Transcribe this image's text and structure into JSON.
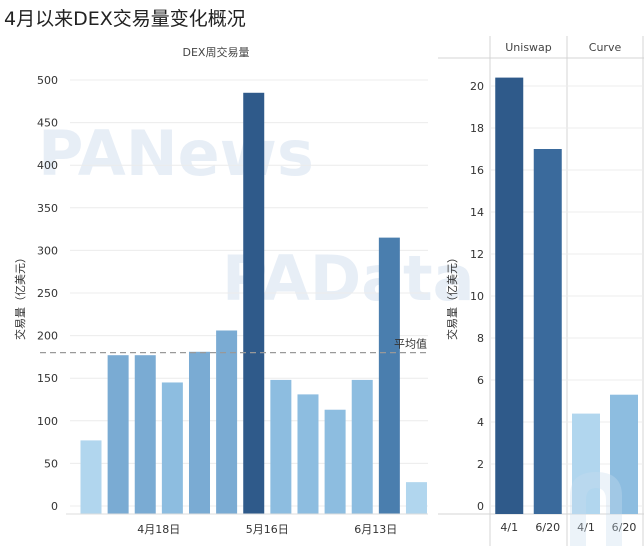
{
  "page": {
    "title": "4月以来DEX交易量变化概况"
  },
  "watermarks": [
    "PANews",
    "PAData"
  ],
  "colors": {
    "dark": "#2f5a8a",
    "dark2": "#3a6a9c",
    "mid_dark": "#4a7eae",
    "mid": "#7aabd3",
    "mid_light": "#8dbde0",
    "light": "#b1d6ee",
    "avg_line": "#999999",
    "grid": "#ececec"
  },
  "chart_data": [
    {
      "type": "bar",
      "title": "DEX周交易量",
      "ylabel": "交易量（亿美元）",
      "ylim": [
        0,
        500
      ],
      "yticks": [
        "0",
        "50",
        "100",
        "150",
        "200",
        "250",
        "300",
        "350",
        "400",
        "450",
        "500"
      ],
      "x_tick_labels": [
        {
          "label": "4月18日",
          "index": 2.5
        },
        {
          "label": "5月16日",
          "index": 6.5
        },
        {
          "label": "6月13日",
          "index": 10.5
        }
      ],
      "values": [
        77,
        177,
        177,
        145,
        181,
        206,
        485,
        148,
        131,
        113,
        148,
        315,
        28
      ],
      "average": {
        "label": "平均值",
        "value": 180
      },
      "color_scale": "sequential-blue-by-value"
    },
    {
      "type": "bar",
      "title": "",
      "ylabel": "交易量（亿美元）",
      "ylim": [
        0,
        21
      ],
      "yticks": [
        "0",
        "2",
        "4",
        "6",
        "8",
        "10",
        "12",
        "14",
        "16",
        "18",
        "20"
      ],
      "groups": [
        {
          "name": "Uniswap",
          "categories": [
            "4/1",
            "6/20"
          ],
          "values": [
            20.4,
            17.0
          ]
        },
        {
          "name": "Curve",
          "categories": [
            "4/1",
            "6/20"
          ],
          "values": [
            4.4,
            5.3
          ]
        }
      ],
      "color_scale": "sequential-blue-by-value"
    }
  ]
}
